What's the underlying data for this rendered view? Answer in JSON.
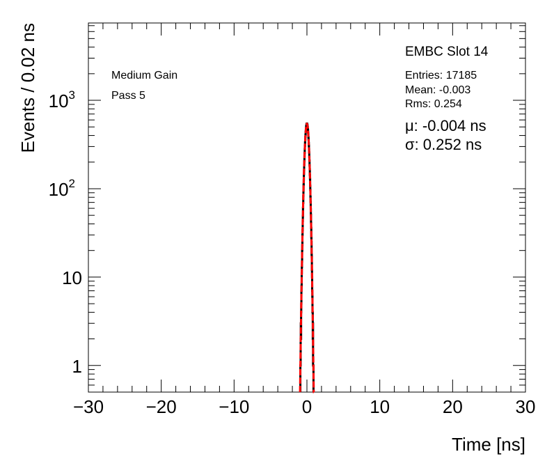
{
  "chart_data": {
    "type": "histogram",
    "xlabel": "Time [ns]",
    "ylabel": "Events / 0.02 ns",
    "xlim": [
      -30,
      30
    ],
    "ylim": [
      0.5,
      7500
    ],
    "yscale": "log",
    "grid": false,
    "x_ticks": [
      "−30",
      "−20",
      "−10",
      "0",
      "10",
      "20",
      "30"
    ],
    "y_ticks": [
      {
        "base": "1",
        "exp": ""
      },
      {
        "base": "10",
        "exp": ""
      },
      {
        "base": "10",
        "exp": "2"
      },
      {
        "base": "10",
        "exp": "3"
      }
    ],
    "bin_width": 0.02,
    "first_bin_low_edge": -0.9,
    "values": [
      1,
      1,
      2,
      3,
      2,
      4,
      5,
      7,
      8,
      11,
      13,
      15,
      20,
      23,
      30,
      34,
      43,
      49,
      61,
      69,
      83,
      95,
      111,
      126,
      146,
      163,
      186,
      205,
      232,
      254,
      283,
      304,
      334,
      357,
      387,
      407,
      435,
      454,
      478,
      493,
      512,
      521,
      535,
      538,
      546,
      542,
      541,
      531,
      525,
      508,
      497,
      474,
      458,
      431,
      411,
      383,
      361,
      330,
      308,
      279,
      257,
      229,
      209,
      183,
      166,
      143,
      129,
      108,
      97,
      81,
      71,
      59,
      51,
      41,
      36,
      28,
      25,
      18,
      17,
      12,
      10,
      7,
      6,
      4,
      4,
      2,
      3,
      1,
      1,
      1
    ],
    "fit": {
      "function": "gaus",
      "amplitude": 544,
      "mean": -0.004,
      "sigma": 0.252,
      "color": "#ff0000"
    },
    "histogram_color": "#000000",
    "annotations": {
      "gain": "Medium Gain",
      "pass": "Pass 5",
      "title": "EMBC Slot 14",
      "entries": "Entries: 17185",
      "mean": "Mean: -0.003",
      "rms": "Rms: 0.254",
      "mu": "μ: -0.004 ns",
      "sigma": "σ: 0.252 ns"
    }
  }
}
